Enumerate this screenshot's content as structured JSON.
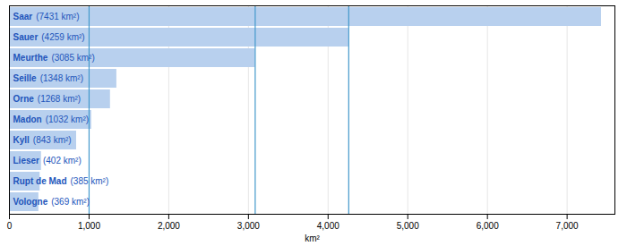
{
  "chart_data": {
    "type": "bar",
    "orientation": "horizontal",
    "categories": [
      "Saar",
      "Sauer",
      "Meurthe",
      "Seille",
      "Orne",
      "Madon",
      "Kyll",
      "Lieser",
      "Rupt de Mad",
      "Vologne"
    ],
    "values": [
      7431,
      4259,
      3085,
      1348,
      1268,
      1032,
      843,
      402,
      385,
      369
    ],
    "value_labels": [
      "(7431 km²)",
      "(4259 km²)",
      "(3085 km²)",
      "(1348 km²)",
      "(1268 km²)",
      "(1032 km²)",
      "(843 km²)",
      "(402 km²)",
      "(385 km²)",
      "(369 km²)"
    ],
    "data_labels": true,
    "color": "#b8d0ee",
    "xlabel": "km²",
    "xlim": [
      0,
      7600
    ],
    "xticks": [
      0,
      1000,
      2000,
      3000,
      4000,
      5000,
      6000,
      7000
    ],
    "grid": true,
    "vlines": [
      1000,
      3085,
      4259
    ],
    "vline_color": "#4499cc",
    "tick_labels": "x"
  }
}
